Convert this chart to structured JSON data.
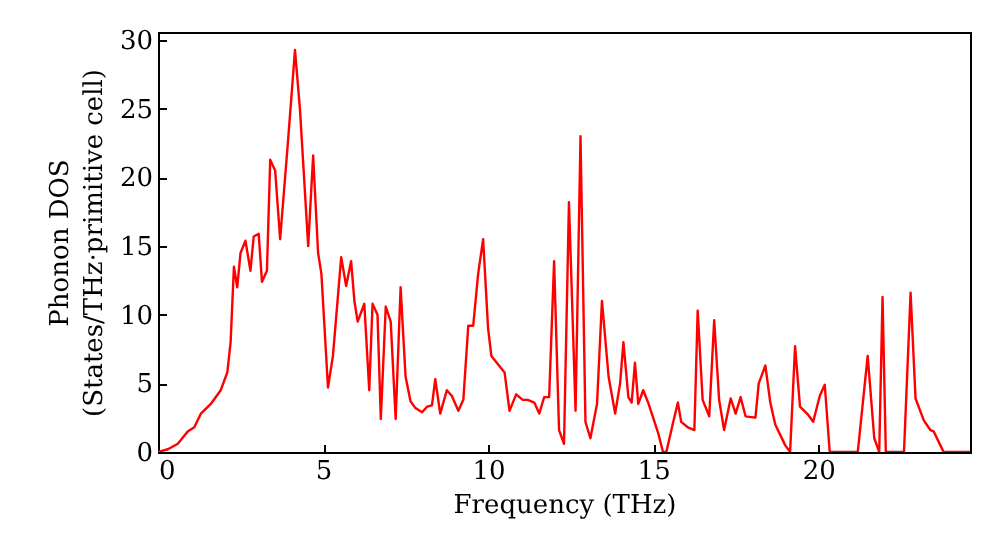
{
  "chart_data": {
    "type": "line",
    "xlabel": "Frequency (THz)",
    "ylabel": "Phonon DOS\n(States/THz·primitive cell)",
    "xlim": [
      0,
      24.6
    ],
    "ylim": [
      0,
      30.6
    ],
    "xticks": [
      0,
      5,
      10,
      15,
      20
    ],
    "yticks": [
      0,
      5,
      10,
      15,
      20,
      25,
      30
    ],
    "grid": false,
    "marker": "none",
    "line_style": "solid",
    "x": [
      0,
      0.3,
      0.6,
      0.9,
      1.1,
      1.3,
      1.6,
      1.9,
      2.1,
      2.2,
      2.3,
      2.4,
      2.5,
      2.65,
      2.8,
      2.9,
      3.05,
      3.15,
      3.3,
      3.4,
      3.55,
      3.7,
      3.95,
      4.15,
      4.3,
      4.55,
      4.7,
      4.85,
      4.95,
      5.15,
      5.3,
      5.55,
      5.7,
      5.85,
      5.95,
      6.05,
      6.25,
      6.4,
      6.5,
      6.65,
      6.75,
      6.9,
      7.05,
      7.2,
      7.35,
      7.5,
      7.65,
      7.8,
      8.0,
      8.15,
      8.3,
      8.4,
      8.55,
      8.75,
      8.9,
      9.1,
      9.25,
      9.4,
      9.55,
      9.7,
      9.85,
      10.0,
      10.1,
      10.3,
      10.5,
      10.65,
      10.85,
      11.05,
      11.2,
      11.4,
      11.55,
      11.7,
      11.85,
      12.0,
      12.15,
      12.3,
      12.45,
      12.65,
      12.8,
      12.95,
      13.1,
      13.3,
      13.45,
      13.65,
      13.85,
      14.0,
      14.1,
      14.25,
      14.35,
      14.45,
      14.55,
      14.7,
      14.85,
      15.0,
      15.15,
      15.3,
      15.4,
      15.6,
      15.75,
      15.85,
      16.05,
      16.25,
      16.35,
      16.5,
      16.7,
      16.85,
      17.0,
      17.15,
      17.35,
      17.5,
      17.65,
      17.8,
      18.1,
      18.2,
      18.4,
      18.55,
      18.7,
      19.0,
      19.15,
      19.3,
      19.45,
      19.7,
      19.85,
      20.05,
      20.2,
      20.35,
      20.6,
      21.2,
      21.5,
      21.7,
      21.85,
      21.95,
      22.05,
      22.4,
      22.6,
      22.8,
      22.95,
      23.2,
      23.4,
      23.5,
      23.7,
      23.8,
      24.6
    ],
    "series": [
      {
        "color": "#ff0000",
        "values": [
          0,
          0.2,
          0.6,
          1.5,
          1.8,
          2.8,
          3.5,
          4.5,
          5.8,
          8,
          13.5,
          12,
          14.5,
          15.4,
          13.2,
          15.7,
          15.9,
          12.4,
          13.2,
          21.3,
          20.5,
          15.5,
          23,
          29.3,
          25,
          15,
          21.6,
          14.5,
          13,
          4.7,
          7,
          14.2,
          12.1,
          13.9,
          11,
          9.5,
          10.8,
          4.5,
          10.8,
          10,
          2.4,
          10.6,
          9.5,
          2.4,
          12,
          5.5,
          3.7,
          3.2,
          2.9,
          3.3,
          3.4,
          5.3,
          2.8,
          4.5,
          4.1,
          3.0,
          3.8,
          9.2,
          9.2,
          13,
          15.5,
          9,
          7,
          6.4,
          5.8,
          3,
          4.2,
          3.8,
          3.8,
          3.6,
          2.8,
          4,
          4,
          13.9,
          1.6,
          0.6,
          18.2,
          3,
          23,
          2.2,
          1,
          3.5,
          11,
          5.5,
          2.8,
          5,
          8,
          4,
          3.6,
          6.5,
          3.5,
          4.5,
          3.6,
          2.5,
          1.4,
          0,
          0,
          2.1,
          3.6,
          2.2,
          1.8,
          1.6,
          10.3,
          3.8,
          2.6,
          9.6,
          3.8,
          1.6,
          3.9,
          2.8,
          4,
          2.6,
          2.5,
          5,
          6.3,
          3.6,
          2,
          0.5,
          0,
          7.7,
          3.3,
          2.7,
          2.2,
          4.1,
          4.9,
          0,
          0,
          0,
          7,
          1,
          0,
          11.3,
          0,
          0,
          0,
          11.6,
          3.9,
          2.3,
          1.6,
          1.5,
          0.5,
          0,
          0
        ]
      }
    ]
  }
}
